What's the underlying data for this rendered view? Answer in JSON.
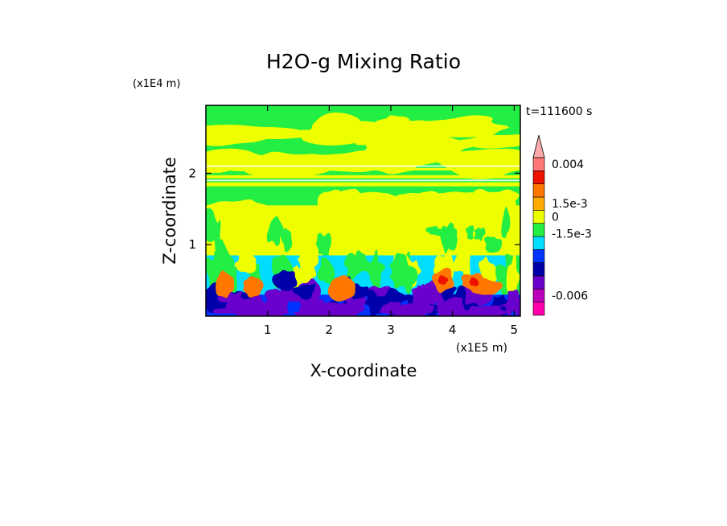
{
  "chart_data": {
    "type": "heatmap",
    "title": "H2O-g Mixing Ratio",
    "xlabel": "X-coordinate",
    "ylabel": "Z-coordinate",
    "x_unit": "(x1E5 m)",
    "y_unit": "(x1E4 m)",
    "time_label": "t=111600 s",
    "xlim": [
      0,
      5.1
    ],
    "ylim": [
      0,
      2.95
    ],
    "x_ticks": [
      {
        "value": 1,
        "label": "1"
      },
      {
        "value": 2,
        "label": "2"
      },
      {
        "value": 3,
        "label": "3"
      },
      {
        "value": 4,
        "label": "4"
      },
      {
        "value": 5,
        "label": "5"
      }
    ],
    "y_ticks": [
      {
        "value": 1,
        "label": "1"
      },
      {
        "value": 2,
        "label": "2"
      }
    ],
    "colorbar": {
      "levels": [
        {
          "color": "#ff00aa"
        },
        {
          "color": "#bb00bb"
        },
        {
          "color": "#6a00cc"
        },
        {
          "color": "#0000aa"
        },
        {
          "color": "#0033ff"
        },
        {
          "color": "#00ddff"
        },
        {
          "color": "#22ee44"
        },
        {
          "color": "#eeff00"
        },
        {
          "color": "#ffaa00"
        },
        {
          "color": "#ff7700"
        },
        {
          "color": "#ee1100"
        },
        {
          "color": "#ff7777"
        },
        {
          "color": "#ffaaaa"
        }
      ],
      "tick_labels": [
        {
          "level_boundary": 11.5,
          "label": "0.004"
        },
        {
          "level_boundary": 8.5,
          "label": "1.5e-3"
        },
        {
          "level_boundary": 7.5,
          "label": "0"
        },
        {
          "level_boundary": 6.2,
          "label": "-1.5e-3"
        },
        {
          "level_boundary": 1.5,
          "label": "-0.006"
        }
      ]
    },
    "background_color": "#22ee44"
  }
}
